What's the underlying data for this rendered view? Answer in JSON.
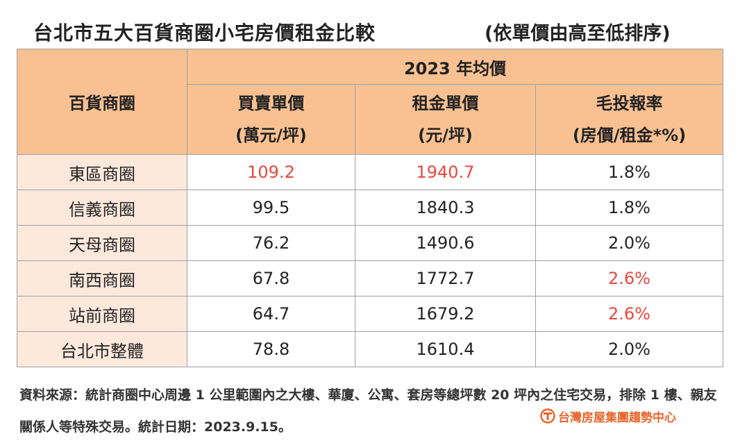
{
  "header": {
    "title": "台北市五大百貨商圈小宅房價租金比較",
    "subtitle": "(依單價由高至低排序)"
  },
  "table": {
    "row_header": "百貨商圈",
    "year_header": "2023 年均價",
    "columns": [
      {
        "line1": "買賣單價",
        "line2": "(萬元/坪)"
      },
      {
        "line1": "租金單價",
        "line2": "(元/坪)"
      },
      {
        "line1": "毛投報率",
        "line2": "(房價/租金*%)"
      }
    ]
  },
  "chart_data": {
    "type": "table",
    "title": "台北市五大百貨商圈小宅房價租金比較",
    "subtitle": "(依單價由高至低排序)",
    "rows": [
      {
        "name": "東區商圈",
        "price": "109.2",
        "rent": "1940.7",
        "yield": "1.8%",
        "hl_price": true,
        "hl_rent": true,
        "hl_yield": false
      },
      {
        "name": "信義商圈",
        "price": "99.5",
        "rent": "1840.3",
        "yield": "1.8%",
        "hl_price": false,
        "hl_rent": false,
        "hl_yield": false
      },
      {
        "name": "天母商圈",
        "price": "76.2",
        "rent": "1490.6",
        "yield": "2.0%",
        "hl_price": false,
        "hl_rent": false,
        "hl_yield": false
      },
      {
        "name": "南西商圈",
        "price": "67.8",
        "rent": "1772.7",
        "yield": "2.6%",
        "hl_price": false,
        "hl_rent": false,
        "hl_yield": true
      },
      {
        "name": "站前商圈",
        "price": "64.7",
        "rent": "1679.2",
        "yield": "2.6%",
        "hl_price": false,
        "hl_rent": false,
        "hl_yield": true
      },
      {
        "name": "台北市整體",
        "price": "78.8",
        "rent": "1610.4",
        "yield": "2.0%",
        "hl_price": false,
        "hl_rent": false,
        "hl_yield": false
      }
    ]
  },
  "footer": {
    "note": "資料來源：統計商圈中心周邊 1 公里範圍內之大樓、華廈、公寓、套房等總坪數 20 坪內之住宅交易，排除 1 樓、親友關係人等特殊交易。統計日期：2023.9.15。",
    "logo_text": "台灣房屋集團趨勢中心"
  },
  "colors": {
    "header_bg": "#f9c192",
    "name_bg": "#fde9dc",
    "highlight": "#e8473f",
    "logo": "#e8652a"
  }
}
